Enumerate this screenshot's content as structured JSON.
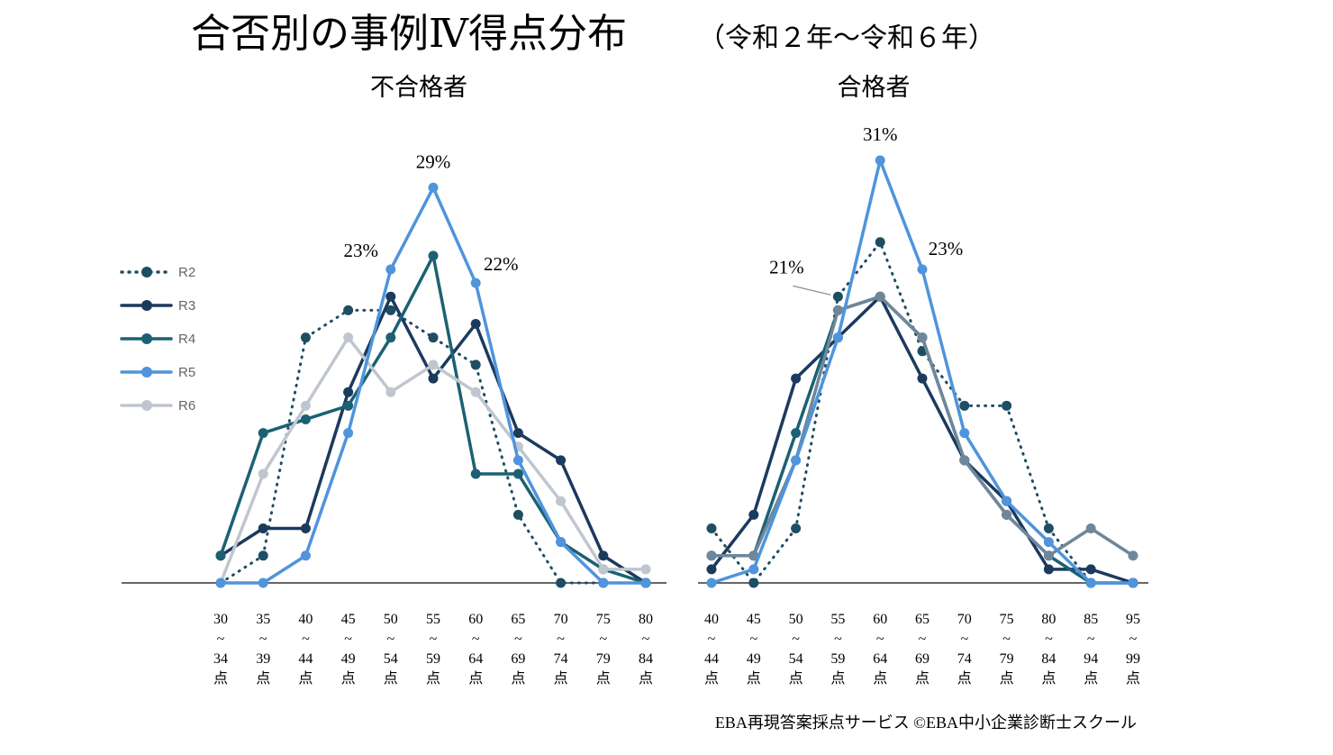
{
  "title": "合否別の事例Ⅳ得点分布",
  "subtitle": "（令和２年〜令和６年）",
  "footer": "EBA再現答案採点サービス ©EBA中小企業診断士スクール",
  "colors": {
    "R2": "#1d4e63",
    "R3": "#1b3a5e",
    "R4": "#1b6173",
    "R5": "#4f94dc",
    "R6": "#c0c6cf",
    "R6_pass": "#6f879a",
    "axis": "#333333"
  },
  "legend": [
    "R2",
    "R3",
    "R4",
    "R5",
    "R6"
  ],
  "chart_data": [
    {
      "type": "line",
      "title": "不合格者",
      "categories": [
        "30～34点",
        "35～39点",
        "40～44点",
        "45～49点",
        "50～54点",
        "55～59点",
        "60～64点",
        "65～69点",
        "70～74点",
        "75～79点",
        "80～84点"
      ],
      "ylim": [
        0,
        30
      ],
      "series": [
        {
          "name": "R2",
          "style": "dotted",
          "values": [
            0,
            2,
            18,
            20,
            20,
            18,
            16,
            5,
            0,
            0,
            0
          ]
        },
        {
          "name": "R3",
          "style": "solid",
          "values": [
            2,
            4,
            4,
            14,
            21,
            15,
            19,
            11,
            9,
            2,
            0
          ]
        },
        {
          "name": "R4",
          "style": "solid",
          "values": [
            2,
            11,
            12,
            13,
            18,
            24,
            8,
            8,
            3,
            1,
            0
          ]
        },
        {
          "name": "R5",
          "style": "solid",
          "values": [
            0,
            0,
            2,
            11,
            23,
            29,
            22,
            9,
            3,
            0,
            0
          ]
        },
        {
          "name": "R6",
          "style": "solid",
          "values": [
            0,
            8,
            13,
            18,
            14,
            16,
            14,
            10,
            6,
            1,
            1
          ]
        }
      ],
      "annotations": [
        {
          "text": "23%",
          "series": "R5",
          "index": 4
        },
        {
          "text": "29%",
          "series": "R5",
          "index": 5
        },
        {
          "text": "22%",
          "series": "R5",
          "index": 6
        }
      ]
    },
    {
      "type": "line",
      "title": "合格者",
      "categories": [
        "40～44点",
        "45～49点",
        "50～54点",
        "55～59点",
        "60～64点",
        "65～69点",
        "70～74点",
        "75～79点",
        "80～84点",
        "85～94点",
        "95～99点"
      ],
      "ylim": [
        0,
        30
      ],
      "series": [
        {
          "name": "R2",
          "style": "dotted",
          "values": [
            4,
            0,
            4,
            21,
            25,
            17,
            13,
            13,
            4,
            0,
            0
          ]
        },
        {
          "name": "R3",
          "style": "solid",
          "values": [
            1,
            5,
            15,
            18,
            21,
            15,
            9,
            6,
            1,
            1,
            0
          ]
        },
        {
          "name": "R4",
          "style": "solid",
          "values": [
            2,
            2,
            11,
            20,
            21,
            18,
            9,
            5,
            2,
            0,
            0
          ]
        },
        {
          "name": "R5",
          "style": "solid",
          "values": [
            0,
            1,
            9,
            18,
            31,
            23,
            11,
            6,
            3,
            0,
            0
          ]
        },
        {
          "name": "R6",
          "style": "solid",
          "values": [
            2,
            2,
            9,
            20,
            21,
            18,
            9,
            5,
            2,
            4,
            2
          ]
        }
      ],
      "annotations": [
        {
          "text": "21%",
          "series": "R2",
          "index": 3
        },
        {
          "text": "31%",
          "series": "R5",
          "index": 4
        },
        {
          "text": "23%",
          "series": "R5",
          "index": 5
        }
      ]
    }
  ]
}
